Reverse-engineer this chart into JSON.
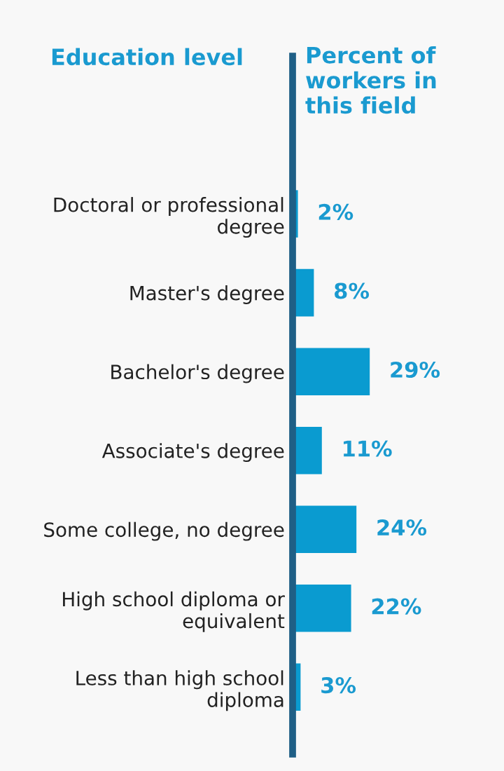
{
  "chart_data": {
    "type": "bar",
    "orientation": "horizontal",
    "ylabel": "Education level",
    "xlabel": "Percent of\nworkers in\nthis field",
    "categories": [
      "Doctoral or professional\ndegree",
      "Master's degree",
      "Bachelor's degree",
      "Associate's degree",
      "Some college, no degree",
      "High school diploma or\nequivalent",
      "Less than high school\ndiploma"
    ],
    "values": [
      2,
      8,
      29,
      11,
      24,
      22,
      3
    ],
    "value_labels": [
      "2%",
      "8%",
      "29%",
      "11%",
      "24%",
      "22%",
      "3%"
    ],
    "color": "#0a9bd0",
    "grid": false,
    "legend": false
  }
}
